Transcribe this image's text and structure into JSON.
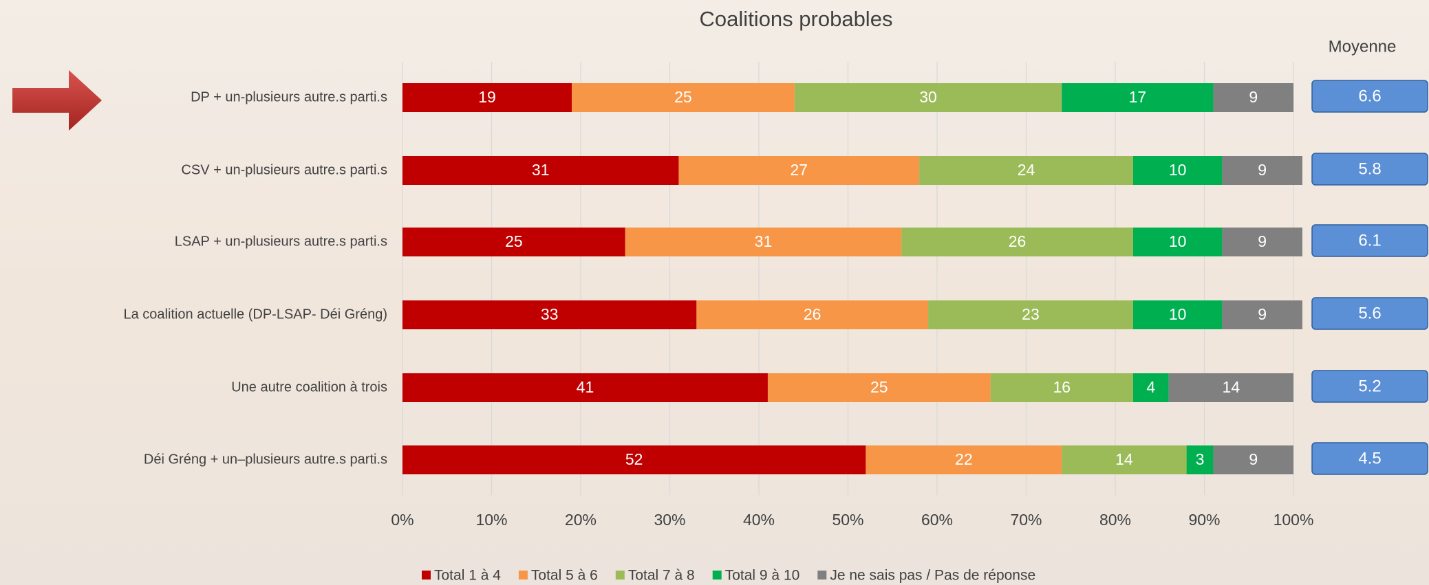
{
  "chart_data": {
    "type": "stacked-bar-horizontal",
    "title": "Coalitions probables",
    "categories": [
      "DP + un-plusieurs autre.s parti.s",
      "CSV + un-plusieurs autre.s parti.s",
      "LSAP + un-plusieurs autre.s parti.s",
      "La coalition actuelle (DP-LSAP- Déi Gréng)",
      "Une autre coalition à trois",
      "Déi Gréng + un–plusieurs autre.s parti.s"
    ],
    "series": [
      {
        "name": "Total 1 à 4",
        "color": "#c00000",
        "values": [
          19,
          31,
          25,
          33,
          41,
          52
        ]
      },
      {
        "name": "Total 5 à 6",
        "color": "#f79646",
        "values": [
          25,
          27,
          31,
          26,
          25,
          22
        ]
      },
      {
        "name": "Total 7 à 8",
        "color": "#9bbb59",
        "values": [
          30,
          24,
          26,
          23,
          16,
          14
        ]
      },
      {
        "name": "Total 9 à 10",
        "color": "#00b050",
        "values": [
          17,
          10,
          10,
          10,
          4,
          3
        ]
      },
      {
        "name": "Je ne sais pas / Pas de réponse",
        "color": "#808080",
        "values": [
          9,
          9,
          9,
          9,
          14,
          9
        ]
      }
    ],
    "xlim": [
      0,
      100
    ],
    "xticks": [
      {
        "value": 0,
        "label": "0%"
      },
      {
        "value": 10,
        "label": "10%"
      },
      {
        "value": 20,
        "label": "20%"
      },
      {
        "value": 30,
        "label": "30%"
      },
      {
        "value": 40,
        "label": "40%"
      },
      {
        "value": 50,
        "label": "50%"
      },
      {
        "value": 60,
        "label": "60%"
      },
      {
        "value": 70,
        "label": "70%"
      },
      {
        "value": 80,
        "label": "80%"
      },
      {
        "value": 90,
        "label": "90%"
      },
      {
        "value": 100,
        "label": "100%"
      }
    ],
    "grid": true,
    "averages_title": "Moyenne",
    "averages": [
      6.6,
      5.8,
      6.1,
      5.6,
      5.2,
      4.5
    ],
    "averages_color": "#5b8fd6"
  }
}
